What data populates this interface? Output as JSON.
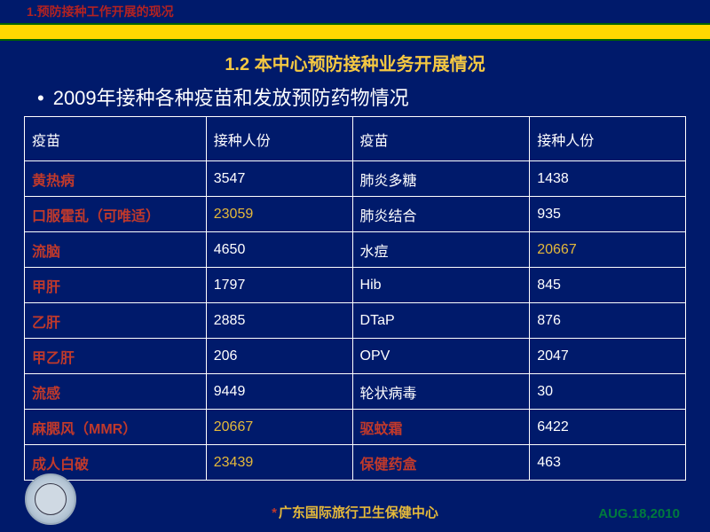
{
  "header": {
    "breadcrumb": "1.预防接种工作开展的现况"
  },
  "section": {
    "title": "1.2  本中心预防接种业务开展情况",
    "bullet": "2009年接种各种疫苗和发放预防药物情况"
  },
  "table": {
    "columns": [
      "疫苗",
      "接种人份",
      "疫苗",
      "接种人份"
    ],
    "col_widths": [
      "205px",
      "165px",
      "200px",
      "176px"
    ],
    "rows": [
      {
        "c": [
          {
            "text": "黄热病",
            "color": "red"
          },
          {
            "text": "3547",
            "color": "white"
          },
          {
            "text": "肺炎多糖",
            "color": "white"
          },
          {
            "text": "1438",
            "color": "white"
          }
        ]
      },
      {
        "c": [
          {
            "text": "口服霍乱（可唯适）",
            "color": "red"
          },
          {
            "text": "23059",
            "color": "yellow"
          },
          {
            "text": "肺炎结合",
            "color": "white"
          },
          {
            "text": "935",
            "color": "white"
          }
        ]
      },
      {
        "c": [
          {
            "text": "流脑",
            "color": "red"
          },
          {
            "text": "4650",
            "color": "white"
          },
          {
            "text": "水痘",
            "color": "white"
          },
          {
            "text": "20667",
            "color": "yellow"
          }
        ]
      },
      {
        "c": [
          {
            "text": "甲肝",
            "color": "red"
          },
          {
            "text": "1797",
            "color": "white"
          },
          {
            "text": "Hib",
            "color": "white"
          },
          {
            "text": "845",
            "color": "white"
          }
        ]
      },
      {
        "c": [
          {
            "text": "乙肝",
            "color": "red"
          },
          {
            "text": "2885",
            "color": "white"
          },
          {
            "text": "DTaP",
            "color": "white"
          },
          {
            "text": "876",
            "color": "white"
          }
        ]
      },
      {
        "c": [
          {
            "text": "甲乙肝",
            "color": "red"
          },
          {
            "text": "206",
            "color": "white"
          },
          {
            "text": "OPV",
            "color": "white"
          },
          {
            "text": "2047",
            "color": "white"
          }
        ]
      },
      {
        "c": [
          {
            "text": "流感",
            "color": "red"
          },
          {
            "text": "9449",
            "color": "white"
          },
          {
            "text": "轮状病毒",
            "color": "white"
          },
          {
            "text": "30",
            "color": "white"
          }
        ]
      },
      {
        "c": [
          {
            "text": "麻腮风（MMR）",
            "color": "red"
          },
          {
            "text": "20667",
            "color": "yellow"
          },
          {
            "text": "驱蚊霜",
            "color": "red"
          },
          {
            "text": "6422",
            "color": "white"
          }
        ]
      },
      {
        "c": [
          {
            "text": "成人白破",
            "color": "red"
          },
          {
            "text": "23439",
            "color": "yellow"
          },
          {
            "text": "保健药盒",
            "color": "red"
          },
          {
            "text": "463",
            "color": "white"
          }
        ]
      }
    ]
  },
  "footer": {
    "org": "广东国际旅行卫生保健中心",
    "date": "AUG.18,2010"
  },
  "palette": {
    "page_bg": "#001a6b",
    "yellow_band": "#ffd800",
    "green_border": "#006400",
    "accent_yellow": "#e5b93a",
    "accent_red": "#c0392b",
    "table_border": "#ffffff"
  }
}
